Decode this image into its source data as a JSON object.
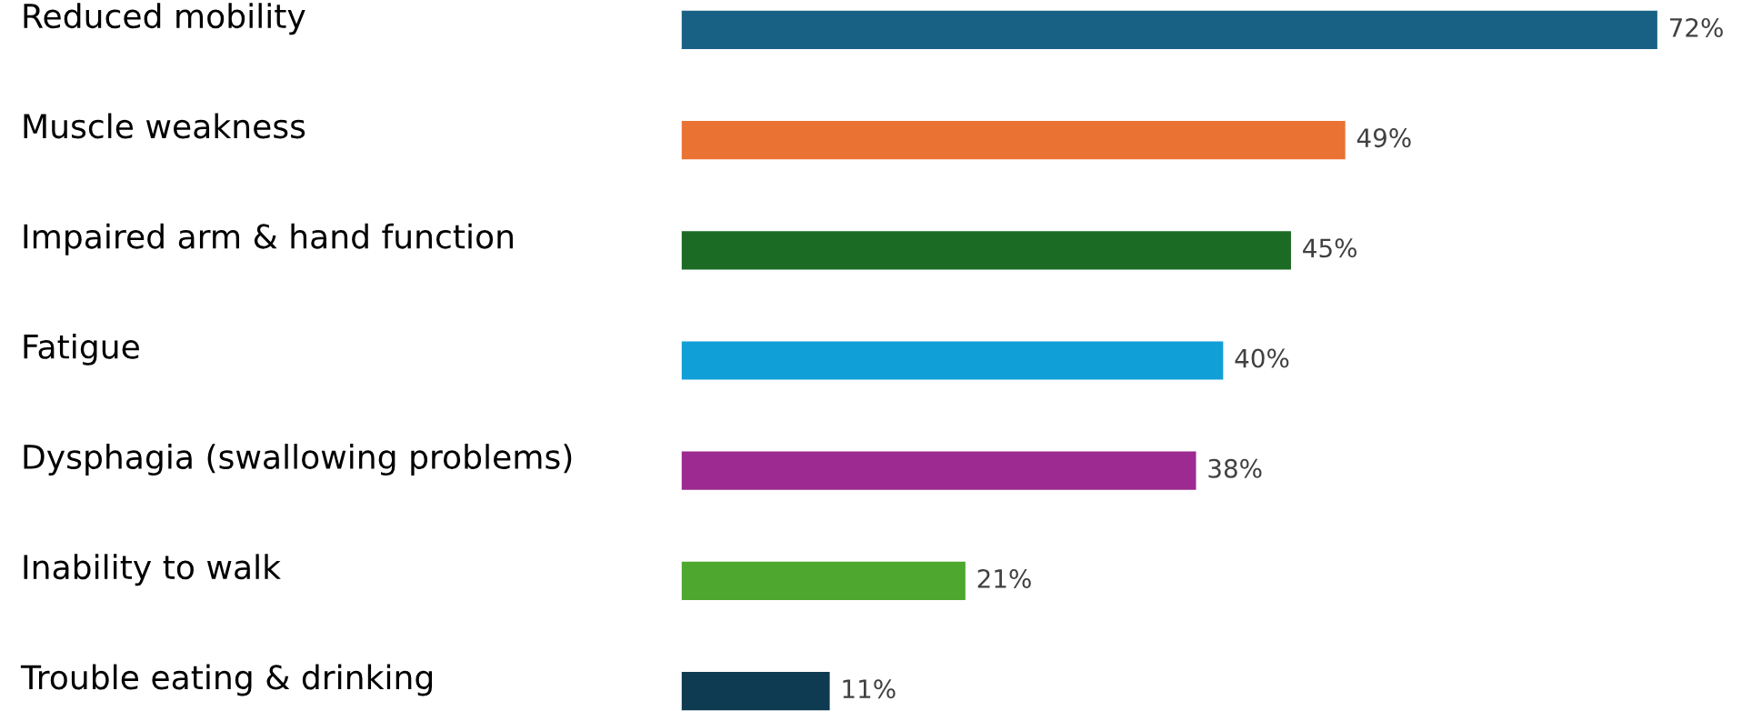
{
  "chart_data": {
    "type": "bar",
    "orientation": "horizontal",
    "categories": [
      "Reduced mobility",
      "Muscle weakness",
      "Impaired arm & hand function",
      "Fatigue",
      "Dysphagia (swallowing problems)",
      "Inability to walk",
      "Trouble eating & drinking"
    ],
    "values": [
      72,
      49,
      45,
      40,
      38,
      21,
      11
    ],
    "value_labels": [
      "72%",
      "49%",
      "45%",
      "40%",
      "38%",
      "21%",
      "11%"
    ],
    "colors": [
      "#186184",
      "#ea7232",
      "#1b6b25",
      "#119fd8",
      "#9c2a90",
      "#4ea72e",
      "#0e3a52"
    ],
    "legend": false
  }
}
